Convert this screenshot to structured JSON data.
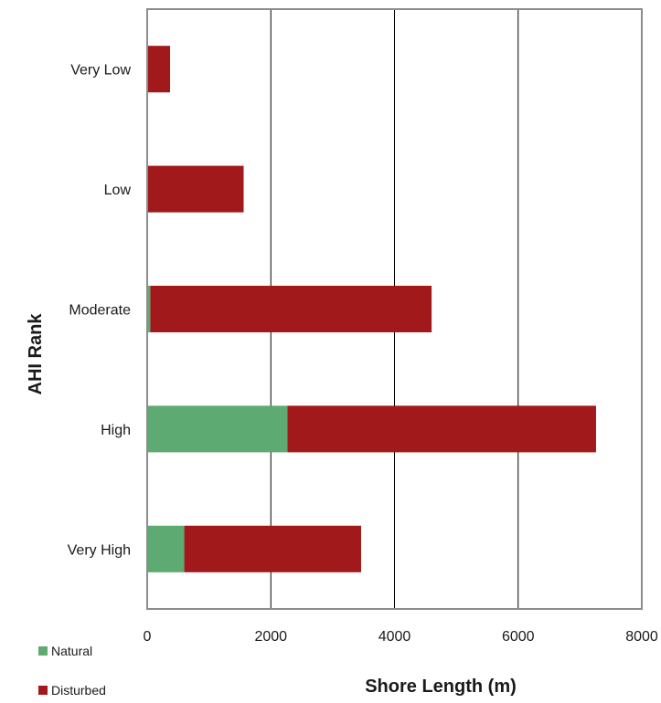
{
  "chart_data": {
    "type": "bar",
    "orientation": "horizontal",
    "stacked": true,
    "categories": [
      "Very High",
      "High",
      "Moderate",
      "Low",
      "Very Low"
    ],
    "series": [
      {
        "name": "Natural",
        "color": "#5daa72",
        "values": [
          600,
          2270,
          50,
          0,
          0
        ]
      },
      {
        "name": "Disturbed",
        "color": "#a1191b",
        "values": [
          2860,
          4990,
          4550,
          1560,
          370
        ]
      }
    ],
    "xlabel": "Shore Length (m)",
    "ylabel": "AHI Rank",
    "xlim": [
      0,
      8000
    ],
    "xticks": [
      "0",
      "2000",
      "4000",
      "6000",
      "8000"
    ],
    "grid": "vertical",
    "legend": "bottom-left"
  }
}
